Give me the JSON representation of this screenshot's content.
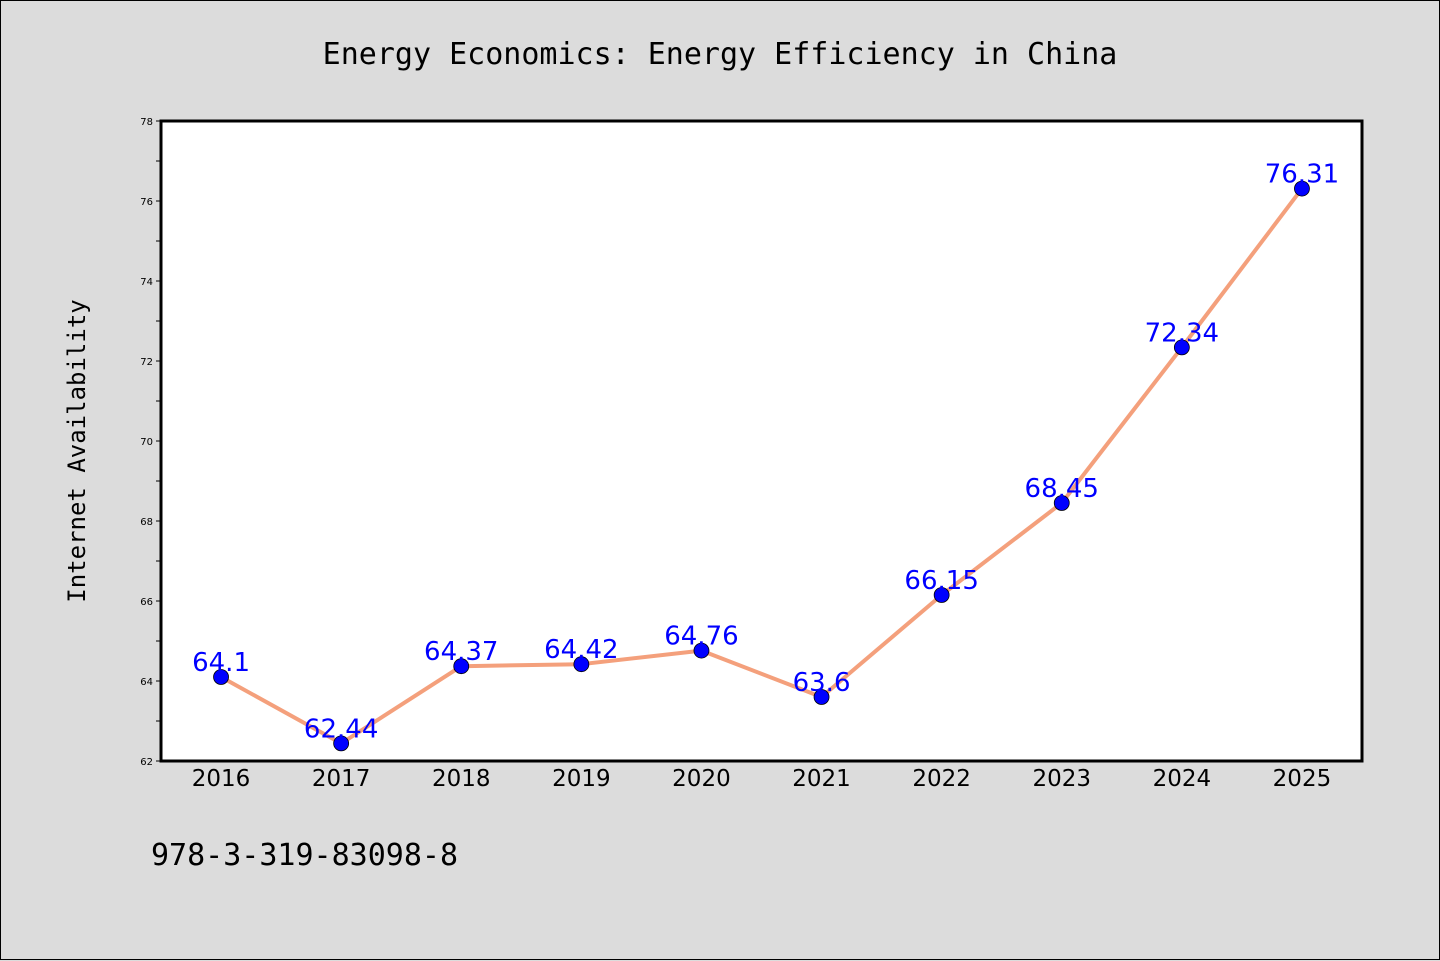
{
  "chart_data": {
    "type": "line",
    "title": "Energy Economics: Energy Efficiency in China",
    "xlabel": "",
    "ylabel": "Internet Availability",
    "categories": [
      "2016",
      "2017",
      "2018",
      "2019",
      "2020",
      "2021",
      "2022",
      "2023",
      "2024",
      "2025"
    ],
    "series": [
      {
        "values": [
          64.1,
          62.44,
          64.37,
          64.42,
          64.76,
          63.6,
          66.15,
          68.45,
          72.34,
          76.31
        ],
        "labels": [
          "64.1",
          "62.44",
          "64.37",
          "64.42",
          "64.76",
          "63.6",
          "66.15",
          "68.45",
          "72.34",
          "76.31"
        ]
      }
    ],
    "ylim": [
      62,
      78
    ],
    "yticks": [
      62,
      64,
      66,
      68,
      70,
      72,
      74,
      76,
      78
    ],
    "grid": false,
    "colors": {
      "line": "#f4a07c",
      "marker": "#0000ff",
      "data_label": "#0000ff",
      "background": "#dcdcdc",
      "plot_background": "#ffffff"
    }
  },
  "footer": {
    "text": "978-3-319-83098-8"
  }
}
